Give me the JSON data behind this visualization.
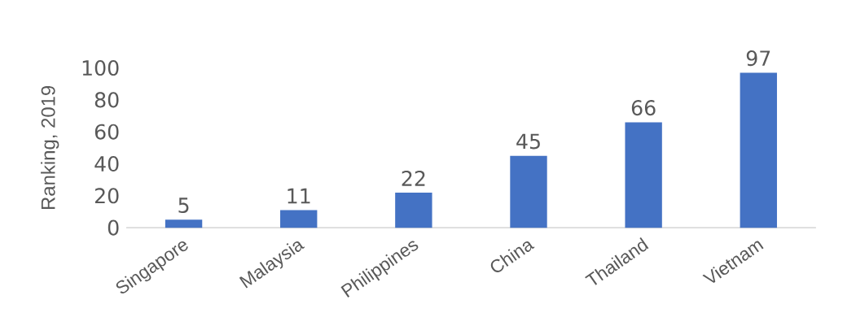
{
  "chart_data": {
    "type": "bar",
    "ylabel": "Ranking, 2019",
    "categories": [
      "Singapore",
      "Malaysia",
      "Philippines",
      "China",
      "Thailand",
      "Vietnam"
    ],
    "values": [
      5,
      11,
      22,
      45,
      66,
      97
    ],
    "color": "#4472c4",
    "ylim": [
      0,
      100
    ],
    "yticks": [
      0,
      20,
      40,
      60,
      80,
      100
    ],
    "data_labels": true,
    "grid": false
  }
}
